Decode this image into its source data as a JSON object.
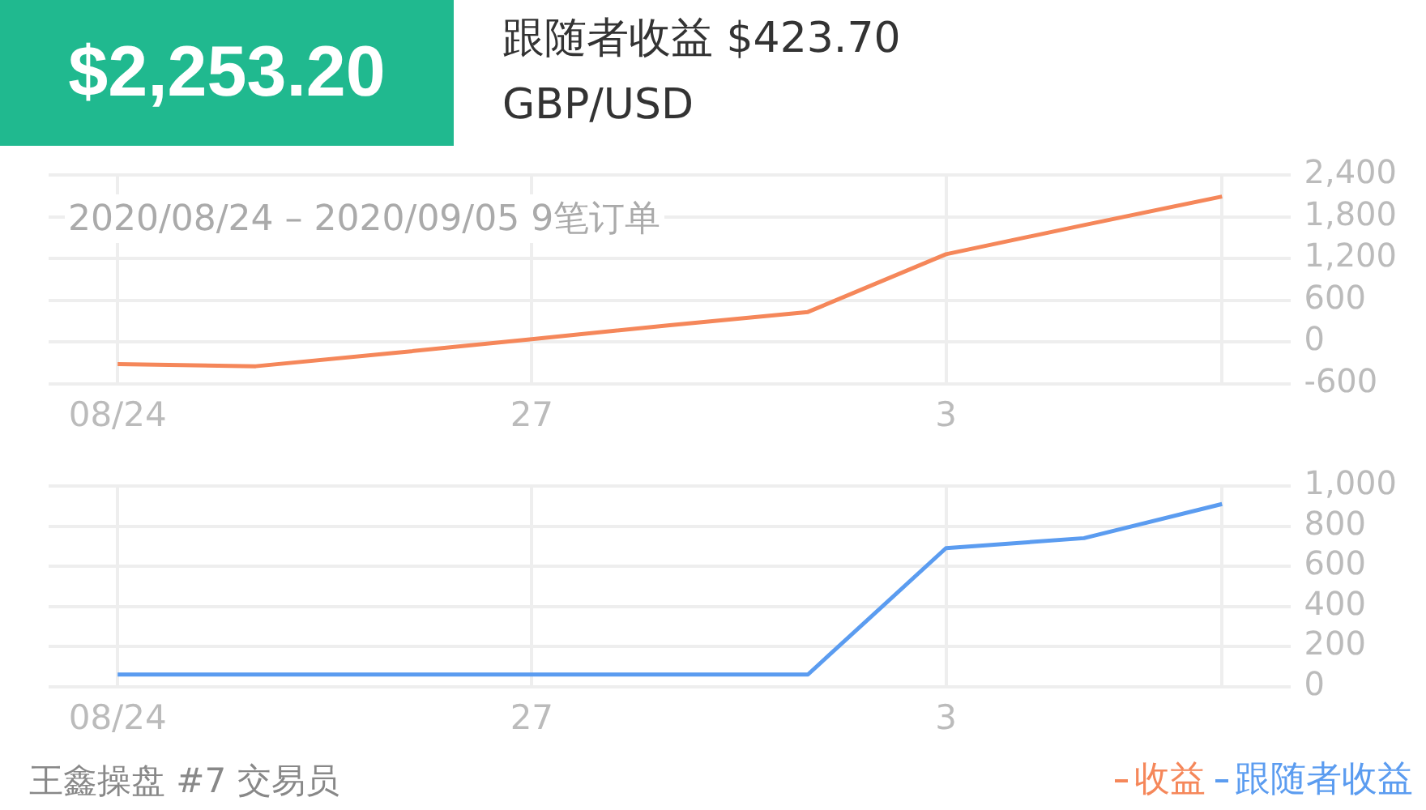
{
  "chart_data": [
    {
      "type": "line",
      "title": "$2,253.20",
      "subtitle": "跟随者收益 $423.70",
      "annotations": [
        "GBP/USD",
        "2020/08/24 – 2020/09/05 9笔订单"
      ],
      "categories": [
        "08/24",
        null,
        null,
        "27",
        null,
        null,
        "3",
        null,
        null
      ],
      "series": [
        {
          "name": "收益",
          "color": "#f5875a",
          "values": [
            -320,
            -350,
            -160,
            40,
            240,
            430,
            1260,
            1680,
            2090
          ]
        }
      ],
      "ylim": [
        -600,
        2400
      ],
      "yticks": [
        -600,
        0,
        600,
        {
          "value": 1200,
          "label": "1,200"
        },
        {
          "value": 1800,
          "label": "1,800"
        },
        {
          "value": 2400,
          "label": "2,400"
        }
      ],
      "grid": true,
      "marker": "none",
      "line_style": "solid",
      "legend": "bottom right"
    },
    {
      "type": "line",
      "annotations": [
        "王鑫操盘 #7 交易员"
      ],
      "categories": [
        "08/24",
        null,
        null,
        "27",
        null,
        null,
        "3",
        null,
        null
      ],
      "series": [
        {
          "name": "跟随者收益",
          "color": "#5b9cf0",
          "values": [
            60,
            60,
            60,
            60,
            60,
            60,
            690,
            740,
            910
          ]
        }
      ],
      "ylim": [
        0,
        1000
      ],
      "yticks": [
        0,
        200,
        400,
        600,
        800,
        {
          "value": 1000,
          "label": "1,000"
        }
      ],
      "grid": true,
      "marker": "none",
      "line_style": "solid",
      "legend": "bottom right"
    }
  ]
}
